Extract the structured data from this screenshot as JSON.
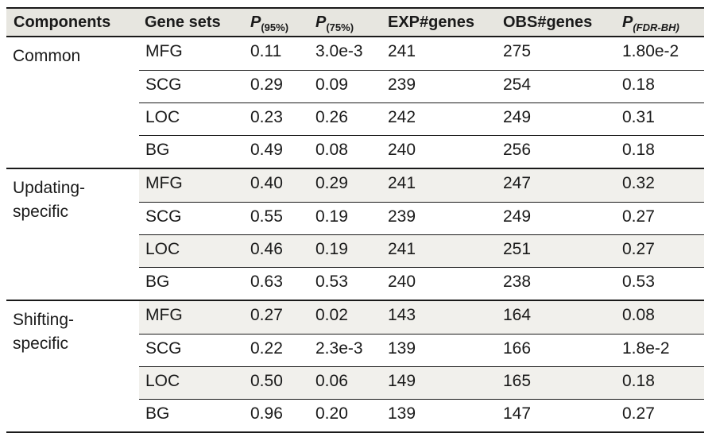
{
  "headers": {
    "components": "Components",
    "gene_sets": "Gene sets",
    "p95_main": "P",
    "p95_sub": "(95%)",
    "p75_main": "P",
    "p75_sub": "(75%)",
    "exp_genes": "EXP#genes",
    "obs_genes": "OBS#genes",
    "pfdr_main": "P",
    "pfdr_sub": "(FDR-BH)"
  },
  "groups": [
    {
      "component": "Common",
      "rows": [
        {
          "gene_set": "MFG",
          "p95": "0.11",
          "p75": "3.0e-3",
          "exp": "241",
          "obs": "275",
          "pfdr": "1.80e-2"
        },
        {
          "gene_set": "SCG",
          "p95": "0.29",
          "p75": "0.09",
          "exp": "239",
          "obs": "254",
          "pfdr": "0.18"
        },
        {
          "gene_set": "LOC",
          "p95": "0.23",
          "p75": "0.26",
          "exp": "242",
          "obs": "249",
          "pfdr": "0.31"
        },
        {
          "gene_set": "BG",
          "p95": "0.49",
          "p75": "0.08",
          "exp": "240",
          "obs": "256",
          "pfdr": "0.18"
        }
      ]
    },
    {
      "component": "Updating-specific",
      "rows": [
        {
          "gene_set": "MFG",
          "p95": "0.40",
          "p75": "0.29",
          "exp": "241",
          "obs": "247",
          "pfdr": "0.32"
        },
        {
          "gene_set": "SCG",
          "p95": "0.55",
          "p75": "0.19",
          "exp": "239",
          "obs": "249",
          "pfdr": "0.27"
        },
        {
          "gene_set": "LOC",
          "p95": "0.46",
          "p75": "0.19",
          "exp": "241",
          "obs": "251",
          "pfdr": "0.27"
        },
        {
          "gene_set": "BG",
          "p95": "0.63",
          "p75": "0.53",
          "exp": "240",
          "obs": "238",
          "pfdr": "0.53"
        }
      ]
    },
    {
      "component": "Shifting-specific",
      "rows": [
        {
          "gene_set": "MFG",
          "p95": "0.27",
          "p75": "0.02",
          "exp": "143",
          "obs": "164",
          "pfdr": "0.08"
        },
        {
          "gene_set": "SCG",
          "p95": "0.22",
          "p75": "2.3e-3",
          "exp": "139",
          "obs": "166",
          "pfdr": "1.8e-2"
        },
        {
          "gene_set": "LOC",
          "p95": "0.50",
          "p75": "0.06",
          "exp": "149",
          "obs": "165",
          "pfdr": "0.18"
        },
        {
          "gene_set": "BG",
          "p95": "0.96",
          "p75": "0.20",
          "exp": "139",
          "obs": "147",
          "pfdr": "0.27"
        }
      ]
    }
  ],
  "colors": {
    "header_bg": "#e7e6e0",
    "shaded_row": "#f1f0ec",
    "rule": "#1a1a1a"
  }
}
